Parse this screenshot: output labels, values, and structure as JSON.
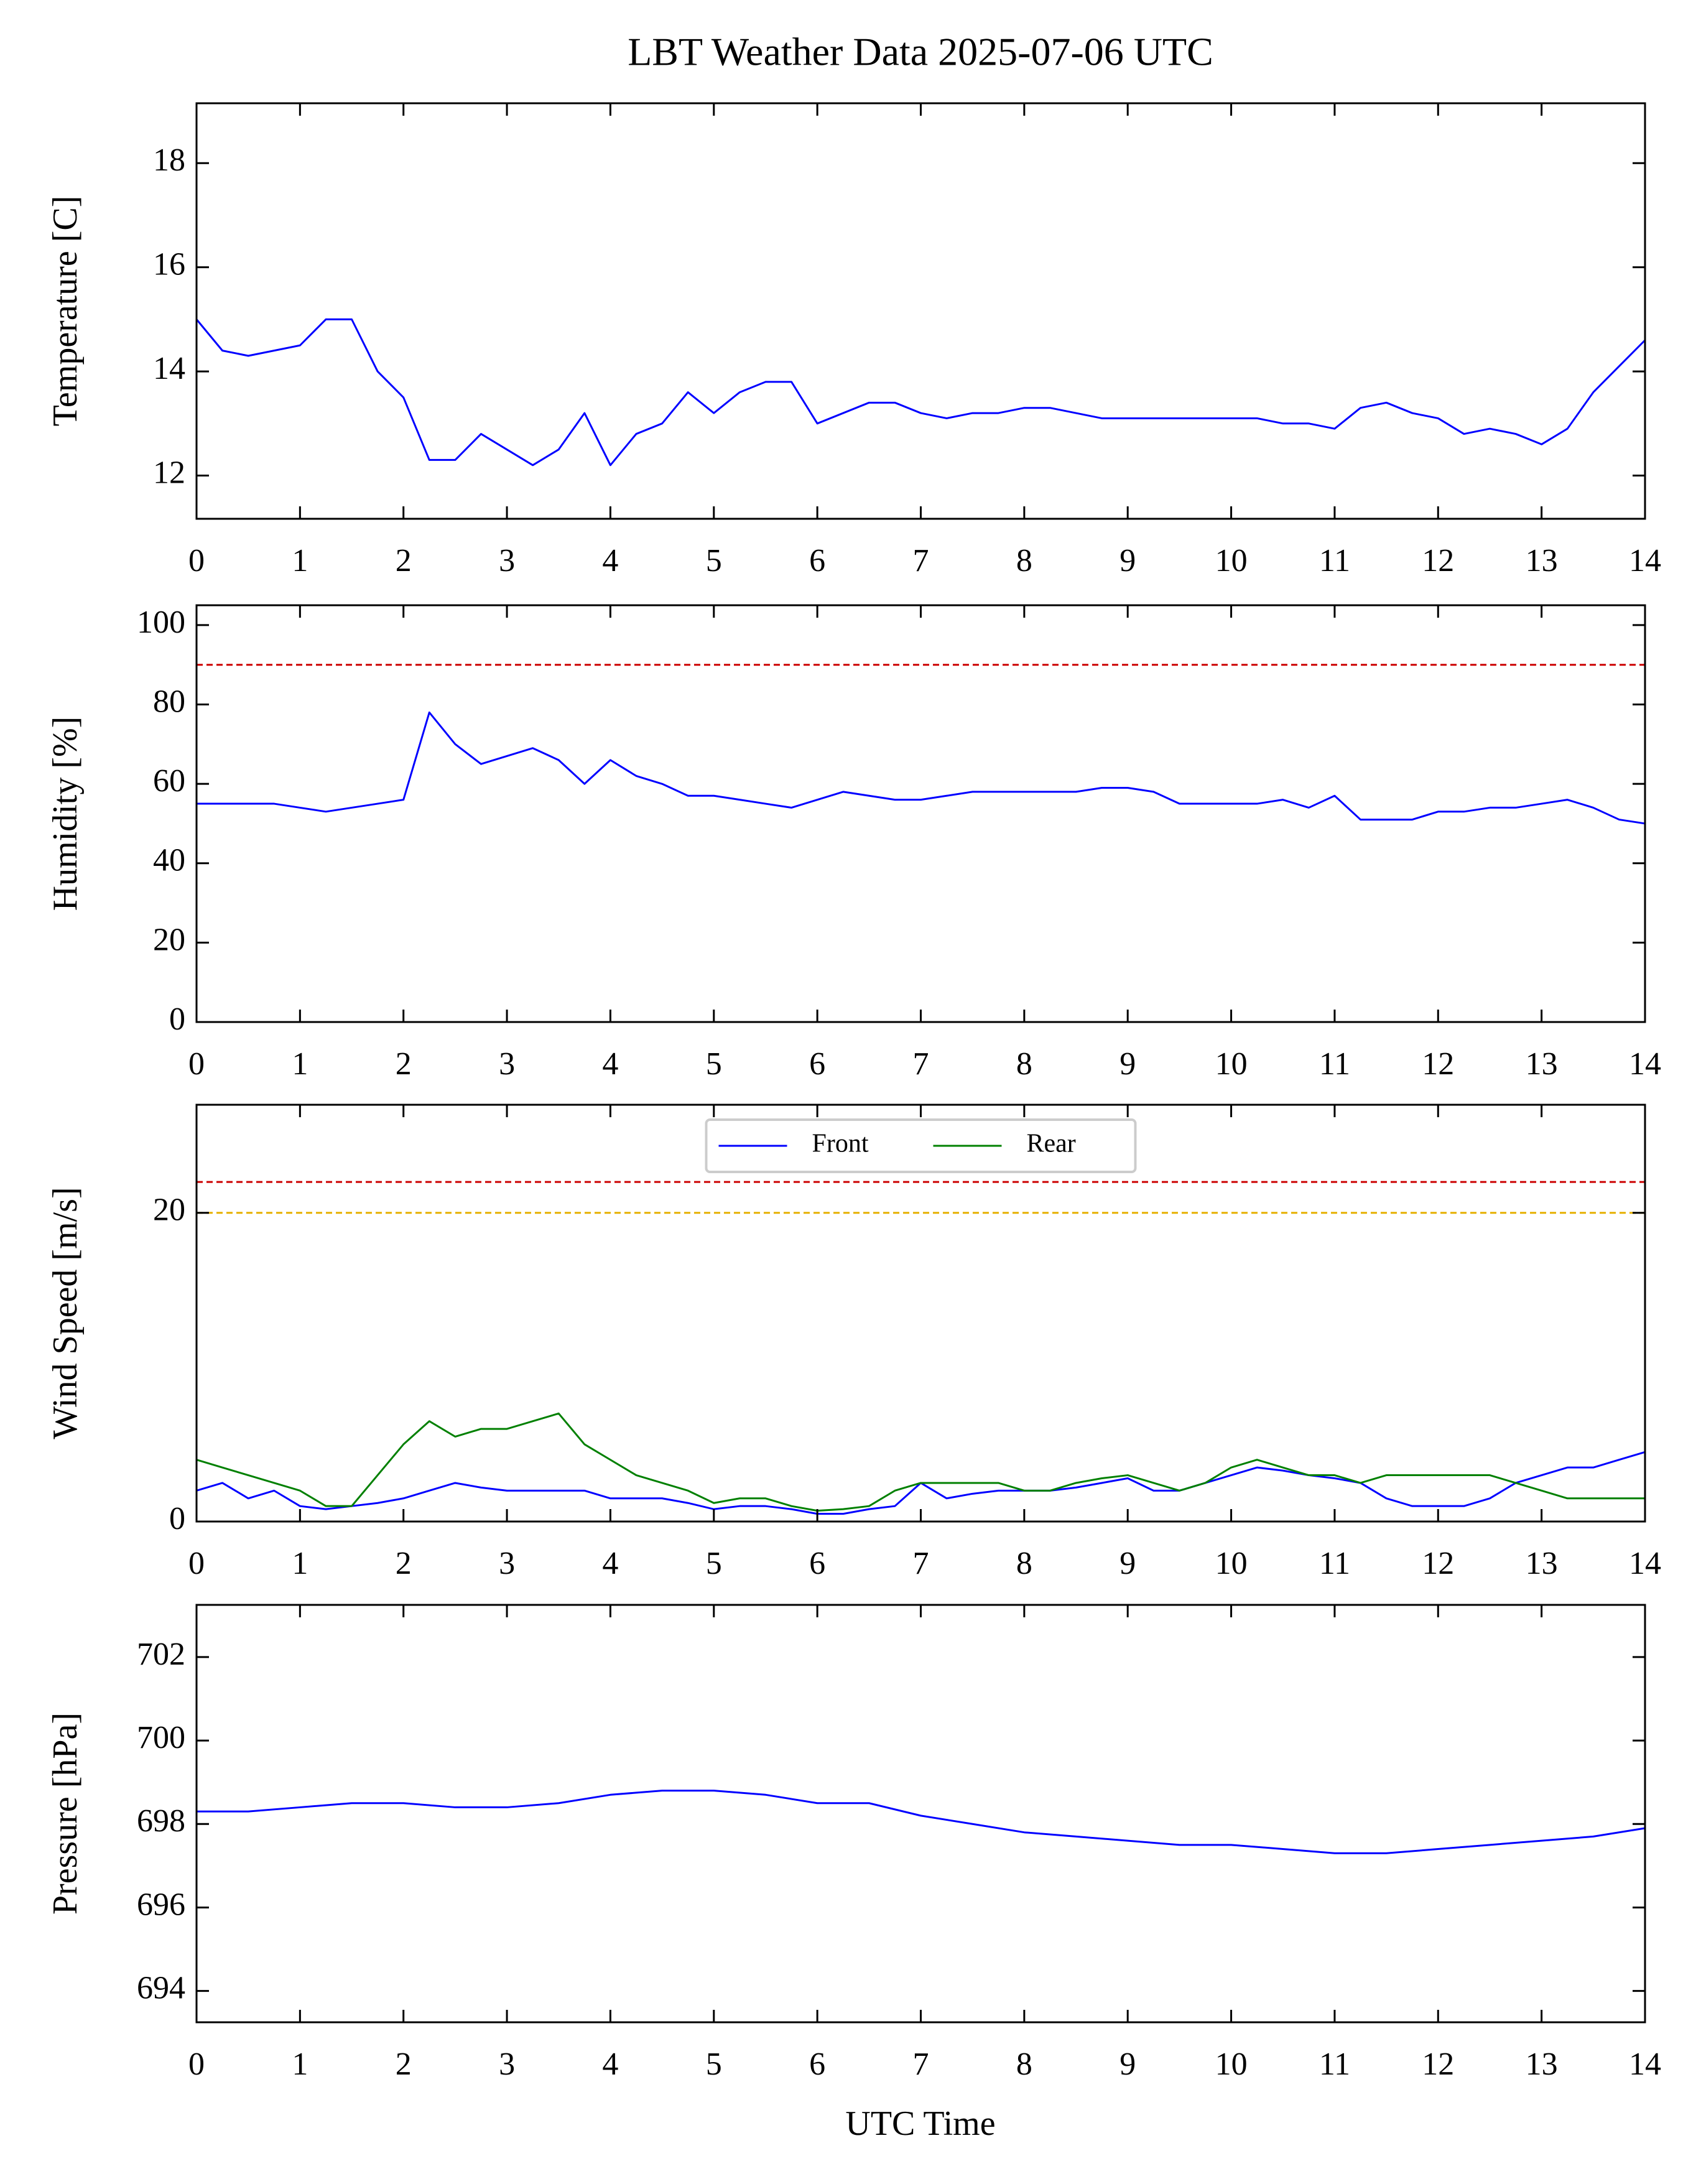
{
  "title": "LBT Weather Data 2025-07-06 UTC",
  "xlabel": "UTC Time",
  "chart_data": [
    {
      "type": "line",
      "ylabel": "Temperature [C]",
      "xlim": [
        0,
        14
      ],
      "xticks": [
        0,
        1,
        2,
        3,
        4,
        5,
        6,
        7,
        8,
        9,
        10,
        11,
        12,
        13,
        14
      ],
      "ylim": [
        11.17,
        19.15
      ],
      "yticks": [
        12,
        14,
        16,
        18
      ],
      "x": [
        0,
        0.25,
        0.5,
        0.75,
        1,
        1.25,
        1.5,
        1.75,
        2,
        2.25,
        2.5,
        2.75,
        3,
        3.25,
        3.5,
        3.75,
        4,
        4.25,
        4.5,
        4.75,
        5,
        5.25,
        5.5,
        5.75,
        6,
        6.25,
        6.5,
        6.75,
        7,
        7.25,
        7.5,
        7.75,
        8,
        8.25,
        8.5,
        8.75,
        9,
        9.25,
        9.5,
        9.75,
        10,
        10.25,
        10.5,
        10.75,
        11,
        11.25,
        11.5,
        11.75,
        12,
        12.25,
        12.5,
        12.75,
        13,
        13.25,
        13.5,
        13.75,
        14
      ],
      "series": [
        {
          "color": "#0000ff",
          "values": [
            15.0,
            14.4,
            14.3,
            14.4,
            14.5,
            15.0,
            15.0,
            14.0,
            13.5,
            12.3,
            12.3,
            12.8,
            12.5,
            12.2,
            12.5,
            13.2,
            12.2,
            12.8,
            13.0,
            13.6,
            13.2,
            13.6,
            13.8,
            13.8,
            13.0,
            13.2,
            13.4,
            13.4,
            13.2,
            13.1,
            13.2,
            13.2,
            13.3,
            13.3,
            13.2,
            13.1,
            13.1,
            13.1,
            13.1,
            13.1,
            13.1,
            13.1,
            13.0,
            13.0,
            12.9,
            13.3,
            13.4,
            13.2,
            13.1,
            12.8,
            12.9,
            12.8,
            12.6,
            12.9,
            13.6,
            14.1,
            14.6
          ]
        }
      ]
    },
    {
      "type": "line",
      "ylabel": "Humidity [%]",
      "xlim": [
        0,
        14
      ],
      "xticks": [
        0,
        1,
        2,
        3,
        4,
        5,
        6,
        7,
        8,
        9,
        10,
        11,
        12,
        13,
        14
      ],
      "ylim": [
        0,
        105
      ],
      "yticks": [
        0,
        20,
        40,
        60,
        80,
        100
      ],
      "hlines": [
        {
          "value": 90,
          "color": "#cc0000"
        }
      ],
      "x": [
        0,
        0.25,
        0.5,
        0.75,
        1,
        1.25,
        1.5,
        1.75,
        2,
        2.25,
        2.5,
        2.75,
        3,
        3.25,
        3.5,
        3.75,
        4,
        4.25,
        4.5,
        4.75,
        5,
        5.25,
        5.5,
        5.75,
        6,
        6.25,
        6.5,
        6.75,
        7,
        7.25,
        7.5,
        7.75,
        8,
        8.25,
        8.5,
        8.75,
        9,
        9.25,
        9.5,
        9.75,
        10,
        10.25,
        10.5,
        10.75,
        11,
        11.25,
        11.5,
        11.75,
        12,
        12.25,
        12.5,
        12.75,
        13,
        13.25,
        13.5,
        13.75,
        14
      ],
      "series": [
        {
          "color": "#0000ff",
          "values": [
            55,
            55,
            55,
            55,
            54,
            53,
            54,
            55,
            56,
            78,
            70,
            65,
            67,
            69,
            66,
            60,
            66,
            62,
            60,
            57,
            57,
            56,
            55,
            54,
            56,
            58,
            57,
            56,
            56,
            57,
            58,
            58,
            58,
            58,
            58,
            59,
            59,
            58,
            55,
            55,
            55,
            55,
            56,
            54,
            57,
            51,
            51,
            51,
            53,
            53,
            54,
            54,
            55,
            56,
            54,
            51,
            50
          ]
        }
      ]
    },
    {
      "type": "line",
      "ylabel": "Wind Speed [m/s]",
      "xlim": [
        0,
        14
      ],
      "xticks": [
        0,
        1,
        2,
        3,
        4,
        5,
        6,
        7,
        8,
        9,
        10,
        11,
        12,
        13,
        14
      ],
      "ylim": [
        0,
        27
      ],
      "yticks": [
        0,
        20
      ],
      "legend": "upper center",
      "hlines": [
        {
          "value": 22,
          "color": "#cc0000"
        },
        {
          "value": 20,
          "color": "#e6b000"
        }
      ],
      "x": [
        0,
        0.25,
        0.5,
        0.75,
        1,
        1.25,
        1.5,
        1.75,
        2,
        2.25,
        2.5,
        2.75,
        3,
        3.25,
        3.5,
        3.75,
        4,
        4.25,
        4.5,
        4.75,
        5,
        5.25,
        5.5,
        5.75,
        6,
        6.25,
        6.5,
        6.75,
        7,
        7.25,
        7.5,
        7.75,
        8,
        8.25,
        8.5,
        8.75,
        9,
        9.25,
        9.5,
        9.75,
        10,
        10.25,
        10.5,
        10.75,
        11,
        11.25,
        11.5,
        11.75,
        12,
        12.25,
        12.5,
        12.75,
        13,
        13.25,
        13.5,
        13.75,
        14
      ],
      "series": [
        {
          "name": "Front",
          "color": "#0000ff",
          "values": [
            2,
            2.5,
            1.5,
            2,
            1,
            0.8,
            1,
            1.2,
            1.5,
            2,
            2.5,
            2.2,
            2,
            2,
            2,
            2,
            1.5,
            1.5,
            1.5,
            1.2,
            0.8,
            1,
            1,
            0.8,
            0.5,
            0.5,
            0.8,
            1,
            2.5,
            1.5,
            1.8,
            2,
            2,
            2,
            2.2,
            2.5,
            2.8,
            2,
            2,
            2.5,
            3,
            3.5,
            3.3,
            3,
            2.8,
            2.5,
            1.5,
            1,
            1,
            1,
            1.5,
            2.5,
            3,
            3.5,
            3.5,
            4,
            4.5
          ]
        },
        {
          "name": "Rear",
          "color": "#008000",
          "values": [
            4,
            3.5,
            3,
            2.5,
            2,
            1,
            1,
            3,
            5,
            6.5,
            5.5,
            6,
            6,
            6.5,
            7,
            5,
            4,
            3,
            2.5,
            2,
            1.2,
            1.5,
            1.5,
            1,
            0.7,
            0.8,
            1,
            2,
            2.5,
            2.5,
            2.5,
            2.5,
            2,
            2,
            2.5,
            2.8,
            3,
            2.5,
            2,
            2.5,
            3.5,
            4,
            3.5,
            3,
            3,
            2.5,
            3,
            3,
            3,
            3,
            3,
            2.5,
            2,
            1.5,
            1.5,
            1.5,
            1.5
          ]
        }
      ]
    },
    {
      "type": "line",
      "ylabel": "Pressure [hPa]",
      "xlim": [
        0,
        14
      ],
      "xticks": [
        0,
        1,
        2,
        3,
        4,
        5,
        6,
        7,
        8,
        9,
        10,
        11,
        12,
        13,
        14
      ],
      "ylim": [
        693.25,
        703.25
      ],
      "yticks": [
        694,
        696,
        698,
        700,
        702
      ],
      "x": [
        0,
        0.5,
        1,
        1.5,
        2,
        2.5,
        3,
        3.5,
        4,
        4.5,
        5,
        5.5,
        6,
        6.5,
        7,
        7.5,
        8,
        8.5,
        9,
        9.5,
        10,
        10.5,
        11,
        11.5,
        12,
        12.5,
        13,
        13.5,
        14
      ],
      "series": [
        {
          "color": "#0000ff",
          "values": [
            698.3,
            698.3,
            698.4,
            698.5,
            698.5,
            698.4,
            698.4,
            698.5,
            698.7,
            698.8,
            698.8,
            698.7,
            698.5,
            698.5,
            698.2,
            698.0,
            697.8,
            697.7,
            697.6,
            697.5,
            697.5,
            697.4,
            697.3,
            697.3,
            697.4,
            697.5,
            697.6,
            697.7,
            697.9
          ]
        }
      ]
    }
  ]
}
